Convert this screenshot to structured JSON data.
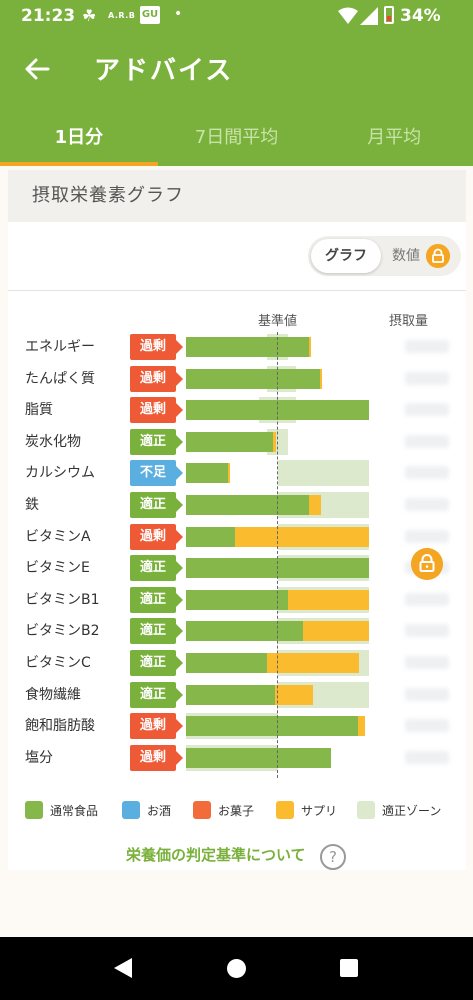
{
  "status_bar": {
    "time": "21:23",
    "carrier_badge": "A.R.B",
    "app_badge": "GU",
    "battery": "34%"
  },
  "app_bar": {
    "title": "アドバイス",
    "tabs": [
      {
        "label": "1日分",
        "active": true
      },
      {
        "label": "7日間平均",
        "active": false
      },
      {
        "label": "月平均",
        "active": false
      }
    ]
  },
  "card": {
    "heading": "摂取栄養素グラフ",
    "toggle": {
      "graph_label": "グラフ",
      "value_label": "数値"
    },
    "col_reference": "基準値",
    "col_intake": "摂取量",
    "criteria_link": "栄養価の判定基準について",
    "help_symbol": "?"
  },
  "colors": {
    "brand_green": "#7ab13c",
    "normal_food": "#86b74a",
    "alcohol": "#5aaee0",
    "snacks": "#f26b3a",
    "supplement": "#fbbb2e",
    "zone": "#dde9cc",
    "status_excess": "#ef5a36",
    "status_ok": "#7ab13c",
    "status_low": "#5aaee0"
  },
  "chart_data": {
    "type": "bar",
    "orientation": "horizontal",
    "stacked": true,
    "reference_value_pct": 100,
    "xlim_pct": [
      0,
      200
    ],
    "series_names": [
      "通常食品",
      "お酒",
      "お菓子",
      "サプリ"
    ],
    "rows": [
      {
        "name": "エネルギー",
        "status": "過剰",
        "status_type": "excess",
        "zone": [
          88,
          112
        ],
        "normal": 134,
        "supplement": 3
      },
      {
        "name": "たんぱく質",
        "status": "過剰",
        "status_type": "excess",
        "zone": [
          88,
          120
        ],
        "normal": 146,
        "supplement": 3
      },
      {
        "name": "脂質",
        "status": "過剰",
        "status_type": "excess",
        "zone": [
          80,
          120
        ],
        "normal": 200,
        "supplement": 0
      },
      {
        "name": "炭水化物",
        "status": "適正",
        "status_type": "ok",
        "zone": [
          88,
          112
        ],
        "normal": 95,
        "supplement": 3
      },
      {
        "name": "カルシウム",
        "status": "不足",
        "status_type": "low",
        "zone": [
          100,
          200
        ],
        "normal": 46,
        "supplement": 2
      },
      {
        "name": "鉄",
        "status": "適正",
        "status_type": "ok",
        "zone": [
          100,
          200
        ],
        "normal": 134,
        "supplement": 13
      },
      {
        "name": "ビタミンA",
        "status": "過剰",
        "status_type": "excess",
        "zone": [
          100,
          200
        ],
        "normal": 54,
        "supplement": 146
      },
      {
        "name": "ビタミンE",
        "status": "適正",
        "status_type": "ok",
        "zone": [
          100,
          200
        ],
        "normal": 200,
        "supplement": 0
      },
      {
        "name": "ビタミンB1",
        "status": "適正",
        "status_type": "ok",
        "zone": [
          100,
          200
        ],
        "normal": 112,
        "supplement": 88
      },
      {
        "name": "ビタミンB2",
        "status": "適正",
        "status_type": "ok",
        "zone": [
          100,
          200
        ],
        "normal": 128,
        "supplement": 72
      },
      {
        "name": "ビタミンC",
        "status": "適正",
        "status_type": "ok",
        "zone": [
          100,
          200
        ],
        "normal": 89,
        "supplement": 100
      },
      {
        "name": "食物繊維",
        "status": "適正",
        "status_type": "ok",
        "zone": [
          100,
          200
        ],
        "normal": 97,
        "supplement": 42
      },
      {
        "name": "飽和脂肪酸",
        "status": "過剰",
        "status_type": "excess",
        "zone": [
          0,
          100
        ],
        "normal": 188,
        "supplement": 8
      },
      {
        "name": "塩分",
        "status": "過剰",
        "status_type": "excess",
        "zone": [
          0,
          100
        ],
        "normal": 158,
        "supplement": 0
      }
    ]
  },
  "legend": [
    {
      "label": "通常食品",
      "color": "#86b74a"
    },
    {
      "label": "お酒",
      "color": "#5aaee0"
    },
    {
      "label": "お菓子",
      "color": "#f26b3a"
    },
    {
      "label": "サプリ",
      "color": "#fbbb2e"
    },
    {
      "label": "適正ゾーン",
      "color": "#dde9cc"
    }
  ]
}
